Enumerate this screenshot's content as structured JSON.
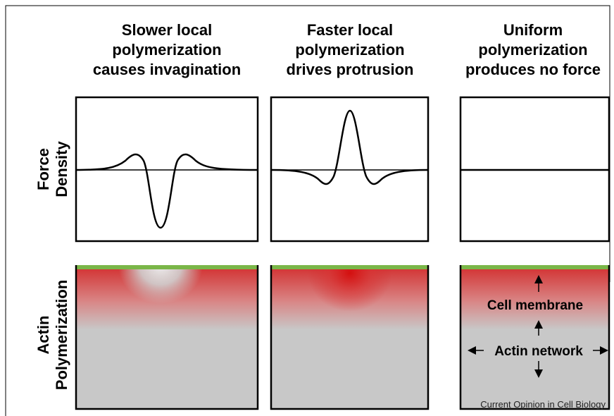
{
  "columns": [
    {
      "title": [
        "Slower local",
        "polymerization",
        "causes invagination"
      ]
    },
    {
      "title": [
        "Faster local",
        "polymerization",
        "drives protrusion"
      ]
    },
    {
      "title": [
        "Uniform",
        "polymerization",
        "produces no force"
      ]
    }
  ],
  "rows": [
    {
      "label": [
        "Force",
        "Density"
      ]
    },
    {
      "label": [
        "Actin",
        "Polymerization"
      ]
    }
  ],
  "annotations": {
    "membrane": "Cell membrane",
    "network": "Actin network"
  },
  "source": "Current Opinion in Cell Biology"
}
